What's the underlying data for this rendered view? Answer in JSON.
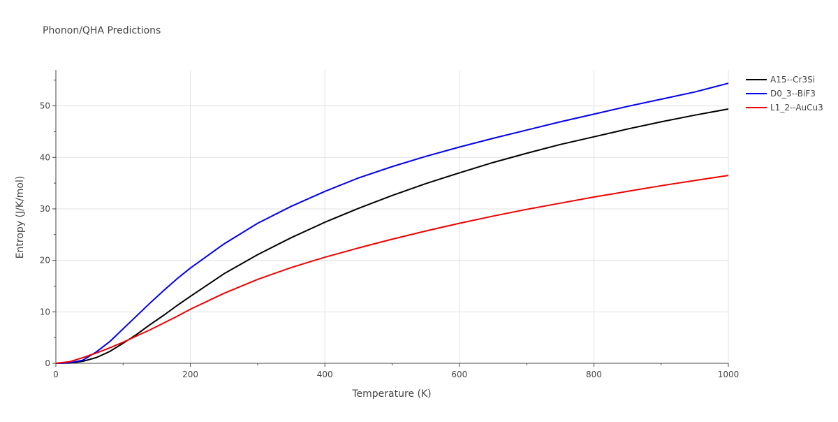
{
  "chart_data": {
    "type": "line",
    "title": "Phonon/QHA Predictions",
    "xlabel": "Temperature (K)",
    "ylabel": "Entropy (J/K/mol)",
    "xlim": [
      0,
      1000
    ],
    "ylim": [
      0,
      57
    ],
    "x_ticks": [
      0,
      200,
      400,
      600,
      800,
      1000
    ],
    "y_ticks": [
      0,
      10,
      20,
      30,
      40,
      50
    ],
    "grid": true,
    "legend_position": "top-right",
    "series": [
      {
        "name": "A15--Cr3Si",
        "color": "#000000",
        "points": [
          [
            0,
            0
          ],
          [
            20,
            0.05
          ],
          [
            40,
            0.4
          ],
          [
            60,
            1.1
          ],
          [
            80,
            2.3
          ],
          [
            100,
            3.9
          ],
          [
            120,
            5.6
          ],
          [
            140,
            7.5
          ],
          [
            160,
            9.3
          ],
          [
            180,
            11.2
          ],
          [
            200,
            13.0
          ],
          [
            250,
            17.4
          ],
          [
            300,
            21.1
          ],
          [
            350,
            24.4
          ],
          [
            400,
            27.4
          ],
          [
            450,
            30.1
          ],
          [
            500,
            32.6
          ],
          [
            550,
            34.9
          ],
          [
            600,
            37.0
          ],
          [
            650,
            39.0
          ],
          [
            700,
            40.8
          ],
          [
            750,
            42.5
          ],
          [
            800,
            44.0
          ],
          [
            850,
            45.5
          ],
          [
            900,
            46.9
          ],
          [
            950,
            48.2
          ],
          [
            1000,
            49.4
          ]
        ]
      },
      {
        "name": "D0_3--BiF3",
        "color": "#0000ee",
        "points": [
          [
            0,
            0
          ],
          [
            20,
            0.1
          ],
          [
            40,
            0.6
          ],
          [
            60,
            2.2
          ],
          [
            80,
            4.2
          ],
          [
            100,
            6.7
          ],
          [
            120,
            9.2
          ],
          [
            140,
            11.7
          ],
          [
            160,
            14.1
          ],
          [
            180,
            16.4
          ],
          [
            200,
            18.5
          ],
          [
            250,
            23.2
          ],
          [
            300,
            27.2
          ],
          [
            350,
            30.5
          ],
          [
            400,
            33.4
          ],
          [
            450,
            36.0
          ],
          [
            500,
            38.2
          ],
          [
            550,
            40.2
          ],
          [
            600,
            42.0
          ],
          [
            650,
            43.7
          ],
          [
            700,
            45.3
          ],
          [
            750,
            46.9
          ],
          [
            800,
            48.4
          ],
          [
            850,
            49.9
          ],
          [
            900,
            51.3
          ],
          [
            950,
            52.7
          ],
          [
            1000,
            54.4
          ]
        ]
      },
      {
        "name": "L1_2--AuCu3",
        "color": "#ee0000",
        "points": [
          [
            0,
            0
          ],
          [
            20,
            0.3
          ],
          [
            40,
            1.1
          ],
          [
            60,
            2.0
          ],
          [
            80,
            3.0
          ],
          [
            100,
            4.1
          ],
          [
            120,
            5.3
          ],
          [
            140,
            6.5
          ],
          [
            160,
            7.8
          ],
          [
            180,
            9.1
          ],
          [
            200,
            10.5
          ],
          [
            250,
            13.6
          ],
          [
            300,
            16.3
          ],
          [
            350,
            18.6
          ],
          [
            400,
            20.6
          ],
          [
            450,
            22.4
          ],
          [
            500,
            24.1
          ],
          [
            550,
            25.7
          ],
          [
            600,
            27.2
          ],
          [
            650,
            28.6
          ],
          [
            700,
            29.9
          ],
          [
            750,
            31.1
          ],
          [
            800,
            32.3
          ],
          [
            850,
            33.4
          ],
          [
            900,
            34.5
          ],
          [
            950,
            35.5
          ],
          [
            1000,
            36.5
          ]
        ]
      }
    ]
  }
}
